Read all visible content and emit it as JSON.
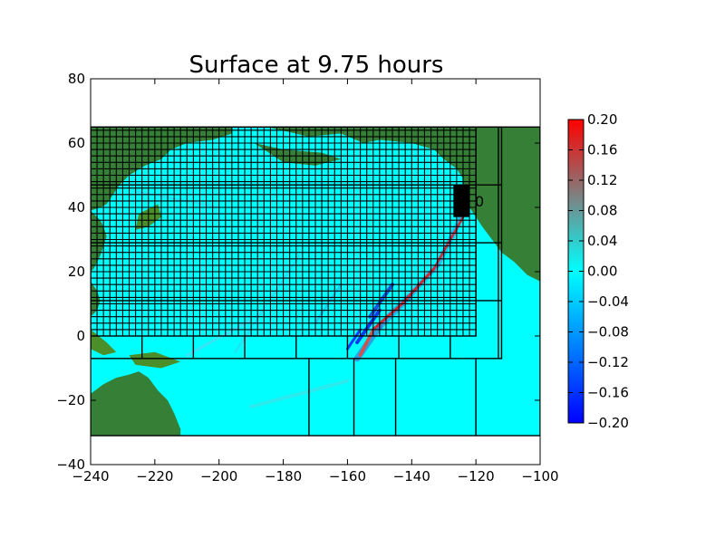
{
  "chart_data": {
    "type": "heatmap",
    "title": "Surface at 9.75 hours",
    "xlabel": "",
    "ylabel": "",
    "xlim": [
      -240,
      -100
    ],
    "ylim": [
      -40,
      80
    ],
    "x_ticks": [
      -240,
      -220,
      -200,
      -180,
      -160,
      -140,
      -120,
      -100
    ],
    "y_ticks": [
      -40,
      -20,
      0,
      20,
      40,
      60,
      80
    ],
    "x_tick_labels": [
      "−240",
      "−220",
      "−200",
      "−180",
      "−160",
      "−140",
      "−120",
      "−100"
    ],
    "y_tick_labels": [
      "−40",
      "−20",
      "0",
      "20",
      "40",
      "60",
      "80"
    ],
    "domain_extent": {
      "x": [
        -240,
        -100
      ],
      "y": [
        -31,
        65
      ]
    },
    "colorbar": {
      "range": [
        -0.2,
        0.2
      ],
      "ticks": [
        -0.2,
        -0.16,
        -0.12,
        -0.08,
        -0.04,
        0.0,
        0.04,
        0.08,
        0.12,
        0.16,
        0.2
      ],
      "tick_labels": [
        "−0.20",
        "−0.16",
        "−0.12",
        "−0.08",
        "−0.04",
        "0.00",
        "0.04",
        "0.08",
        "0.12",
        "0.16",
        "0.20"
      ],
      "colors": [
        "#0000ff",
        "#00ffff",
        "#ff0000"
      ]
    },
    "gauge": {
      "label": "0",
      "x": [
        -127,
        -122
      ],
      "y": [
        37,
        47
      ]
    },
    "grid_patches": [
      {
        "x": [
          -240,
          -100
        ],
        "y": [
          -31,
          65
        ]
      },
      {
        "x": [
          -240,
          -112
        ],
        "y": [
          -7,
          65
        ]
      },
      {
        "x": [
          -240,
          -120
        ],
        "y": [
          0,
          65
        ]
      }
    ],
    "land_color": "#367f37",
    "ocean_color": "#00ffff",
    "fine_grid_x_step": 2,
    "fine_grid_y_step": 2
  }
}
